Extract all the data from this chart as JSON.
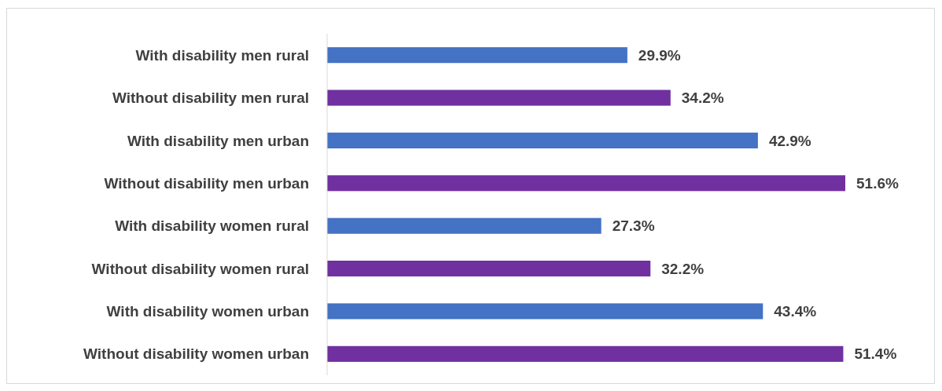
{
  "chart_data": {
    "type": "bar",
    "orientation": "horizontal",
    "categories": [
      "With disability men rural",
      "Without disability men rural",
      "With disability men urban",
      "Without disability men urban",
      "With disability women rural",
      "Without disability women rural",
      "With disability women urban",
      "Without disability women urban"
    ],
    "values": [
      29.9,
      34.2,
      42.9,
      51.6,
      27.3,
      32.2,
      43.4,
      51.4
    ],
    "colors": [
      "#4472c4",
      "#7030a0",
      "#4472c4",
      "#7030a0",
      "#4472c4",
      "#7030a0",
      "#4472c4",
      "#7030a0"
    ],
    "value_labels": [
      "29.9%",
      "34.2%",
      "42.9%",
      "51.6%",
      "27.3%",
      "32.2%",
      "43.4%",
      "51.4%"
    ]
  }
}
